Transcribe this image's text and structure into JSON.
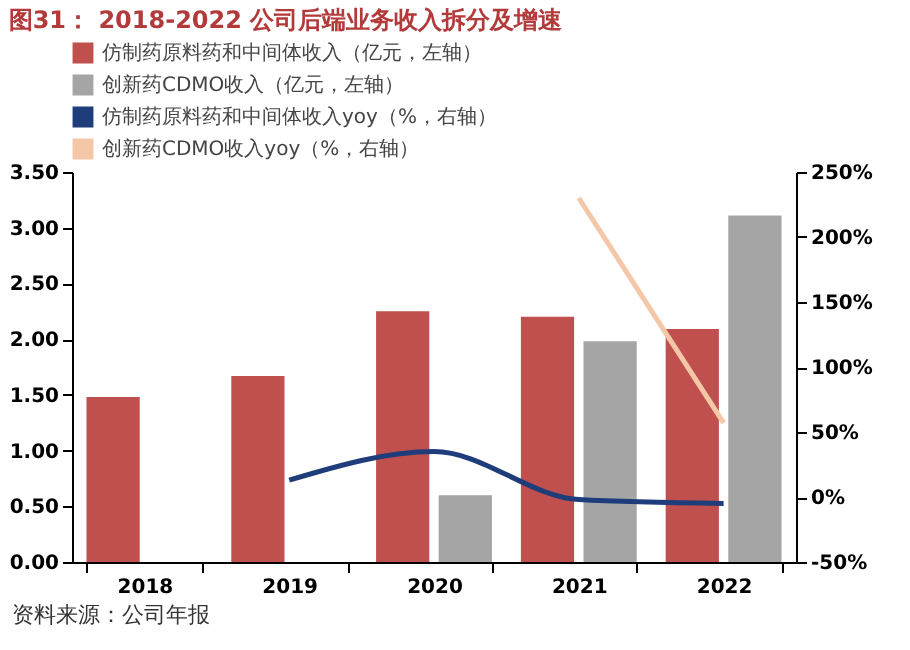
{
  "chart_data": {
    "type": "bar",
    "title": "图31： 2018-2022 公司后端业务收入拆分及增速",
    "categories": [
      "2018",
      "2019",
      "2020",
      "2021",
      "2022"
    ],
    "series": [
      {
        "name": "仿制药原料药和中间体收入（亿元，左轴）",
        "type": "bar",
        "color": "#c0504d",
        "values": [
          1.48,
          1.67,
          2.25,
          2.2,
          2.09
        ]
      },
      {
        "name": "创新药CDMO收入（亿元，左轴）",
        "type": "bar",
        "color": "#a5a5a5",
        "values": [
          null,
          null,
          0.6,
          1.98,
          3.11
        ]
      },
      {
        "name": "仿制药原料药和中间体收入yoy（%，右轴）",
        "type": "line",
        "axis": "y2",
        "color": "#1f3d7a",
        "values": [
          null,
          13,
          35,
          -2,
          -5
        ]
      },
      {
        "name": "创新药CDMO收入yoy（%，右轴）",
        "type": "line",
        "axis": "y2",
        "color": "#f4c7a8",
        "values": [
          null,
          null,
          null,
          230,
          57
        ]
      }
    ],
    "ylim": [
      0,
      3.5
    ],
    "yticks": [
      {
        "value": 0,
        "label": "0.00"
      },
      {
        "value": 0.5,
        "label": "0.50"
      },
      {
        "value": 1,
        "label": "1.00"
      },
      {
        "value": 1.5,
        "label": "1.50"
      },
      {
        "value": 2,
        "label": "2.00"
      },
      {
        "value": 2.5,
        "label": "2.50"
      },
      {
        "value": 3,
        "label": "3.00"
      },
      {
        "value": 3.5,
        "label": "3.50"
      }
    ],
    "y2lim": [
      -50,
      250
    ],
    "y2ticks": [
      {
        "value": -50,
        "label": "-50%"
      },
      {
        "value": 0,
        "label": "0%"
      },
      {
        "value": 50,
        "label": "50%"
      },
      {
        "value": 100,
        "label": "100%"
      },
      {
        "value": 150,
        "label": "150%"
      },
      {
        "value": 200,
        "label": "200%"
      },
      {
        "value": 250,
        "label": "250%"
      }
    ],
    "grid": false,
    "legend": "top",
    "marker": "none",
    "line_style": "solid",
    "annotations": [
      "资料来源：公司年报"
    ]
  }
}
